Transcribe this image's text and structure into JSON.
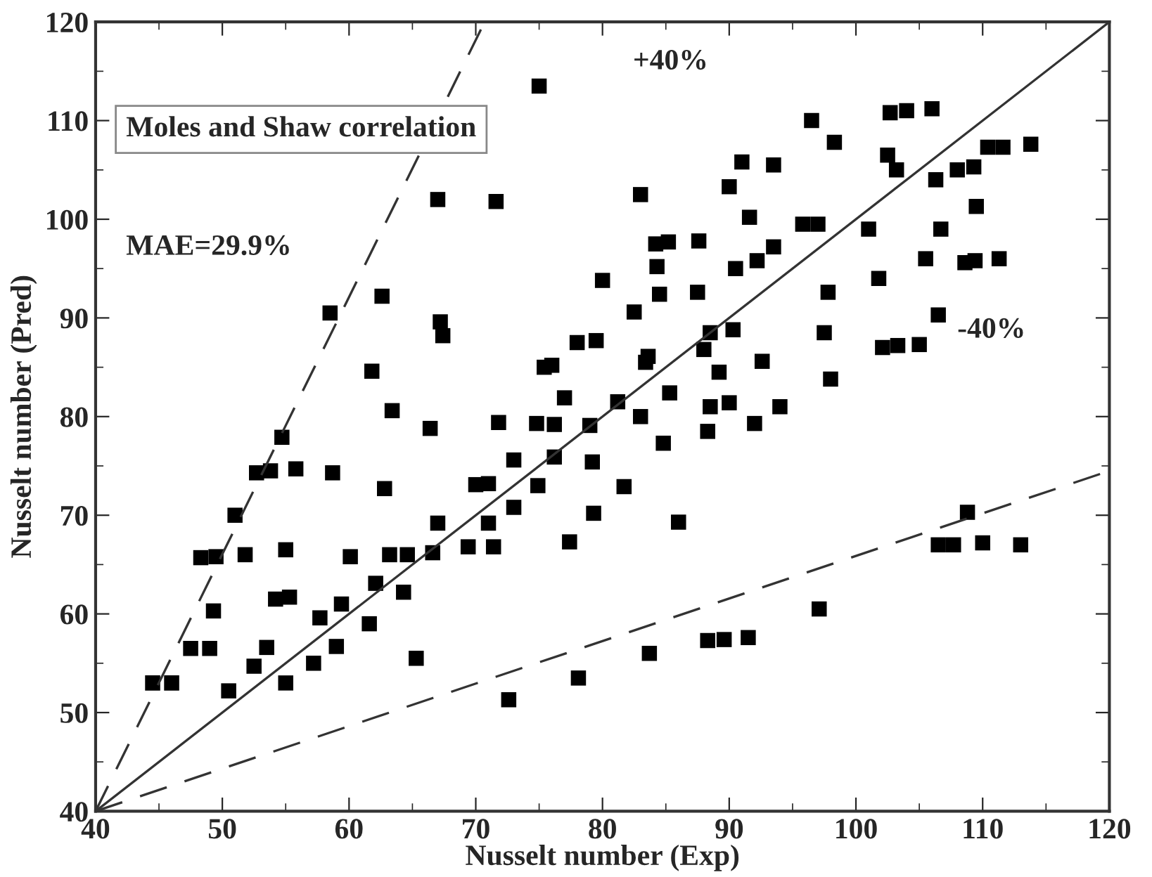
{
  "chart_data": {
    "type": "scatter",
    "xlabel": "Nusselt number (Exp)",
    "ylabel": "Nusselt number (Pred)",
    "xlim": [
      40,
      120
    ],
    "ylim": [
      40,
      120
    ],
    "xticks": [
      40,
      50,
      60,
      70,
      80,
      90,
      100,
      110,
      120
    ],
    "yticks": [
      40,
      50,
      60,
      70,
      80,
      90,
      100,
      110,
      120
    ],
    "grid": false,
    "series": [
      {
        "color": "#000000",
        "marker": "square",
        "x": [
          44.5,
          46,
          47.5,
          48.3,
          49,
          49.3,
          49.5,
          50.5,
          51,
          51.8,
          52.5,
          52.7,
          53.5,
          53.8,
          54.2,
          54.7,
          55,
          55,
          55.3,
          55.8,
          57.2,
          57.7,
          58.5,
          58.7,
          59,
          59.4,
          60.1,
          61.6,
          61.8,
          62.1,
          62.6,
          62.8,
          63.2,
          63.4,
          64.3,
          64.6,
          65.3,
          66.4,
          66.6,
          67,
          67,
          67.2,
          67.4,
          69.4,
          70,
          71,
          71,
          71.4,
          71.6,
          71.8,
          72.6,
          73,
          73,
          74.8,
          74.9,
          75,
          75.4,
          76.2,
          76.2,
          76,
          77,
          77.4,
          78,
          78.1,
          79,
          79.2,
          79.3,
          79.5,
          80,
          81.2,
          81.7,
          82.5,
          83,
          83,
          83.4,
          83.6,
          83.7,
          84.2,
          84.3,
          84.5,
          84.8,
          85.2,
          85.3,
          86,
          87.5,
          87.6,
          88,
          88.5,
          88.3,
          88.3,
          88.5,
          89.2,
          89.6,
          90,
          90,
          90.3,
          90.5,
          91,
          91.5,
          91.6,
          92,
          92.2,
          92.6,
          93.5,
          93.5,
          94,
          95.8,
          96.5,
          97.1,
          97,
          97.5,
          97.8,
          98,
          98.3,
          101,
          101.8,
          102.1,
          102.5,
          102.7,
          103.2,
          103.3,
          104,
          105,
          105.5,
          106,
          106.3,
          106.5,
          106.7,
          106.5,
          107.7,
          108,
          108.6,
          108.8,
          109.3,
          109.4,
          110,
          110.4,
          111.3,
          111.6,
          113,
          113.8,
          109.5
        ],
        "values": [
          53,
          53,
          56.5,
          65.7,
          56.5,
          60.3,
          65.8,
          52.2,
          70,
          66,
          54.7,
          74.3,
          56.6,
          74.5,
          61.5,
          77.9,
          53,
          66.5,
          61.7,
          74.7,
          55,
          59.6,
          90.5,
          74.3,
          56.7,
          61,
          65.8,
          59,
          84.6,
          63.1,
          92.2,
          72.7,
          66,
          80.6,
          62.2,
          66,
          55.5,
          78.8,
          66.2,
          102,
          69.2,
          89.6,
          88.2,
          66.8,
          73.1,
          73.2,
          69.2,
          66.8,
          101.8,
          79.4,
          51.3,
          75.6,
          70.8,
          79.3,
          73,
          113.5,
          85,
          79.2,
          75.9,
          85.2,
          81.9,
          67.3,
          87.5,
          53.5,
          79.1,
          75.4,
          70.2,
          87.7,
          93.8,
          81.5,
          72.9,
          90.6,
          102.5,
          80,
          85.5,
          86.1,
          56,
          97.5,
          95.2,
          92.4,
          77.3,
          97.7,
          82.4,
          69.3,
          92.6,
          97.8,
          86.8,
          88.5,
          78.5,
          57.3,
          81,
          84.5,
          57.4,
          81.4,
          103.3,
          88.8,
          95,
          105.8,
          57.6,
          100.2,
          79.3,
          95.8,
          85.6,
          105.5,
          97.2,
          81,
          99.5,
          110,
          60.5,
          99.5,
          88.5,
          92.6,
          83.8,
          107.8,
          99,
          94,
          87,
          106.5,
          110.8,
          105,
          87.2,
          111,
          87.3,
          96,
          111.2,
          104,
          90.3,
          99,
          67,
          67,
          105,
          95.6,
          70.3,
          105.3,
          95.8,
          67.2,
          107.3,
          96,
          107.3,
          67,
          107.6,
          101.3
        ]
      },
      {
        "type": "line",
        "color": "#333333",
        "line_style": "solid",
        "x": [
          40,
          120
        ],
        "values": [
          40,
          120
        ]
      },
      {
        "type": "line",
        "color": "#333333",
        "line_style": "dashed",
        "x": [
          40,
          70.7
        ],
        "values": [
          40,
          120
        ]
      },
      {
        "type": "line",
        "color": "#333333",
        "line_style": "dashed",
        "x": [
          40,
          120
        ],
        "values": [
          40,
          74.5
        ]
      }
    ],
    "annotations": [
      "Moles and Shaw correlation",
      "MAE=29.9%",
      "+40%",
      "-40%"
    ]
  }
}
